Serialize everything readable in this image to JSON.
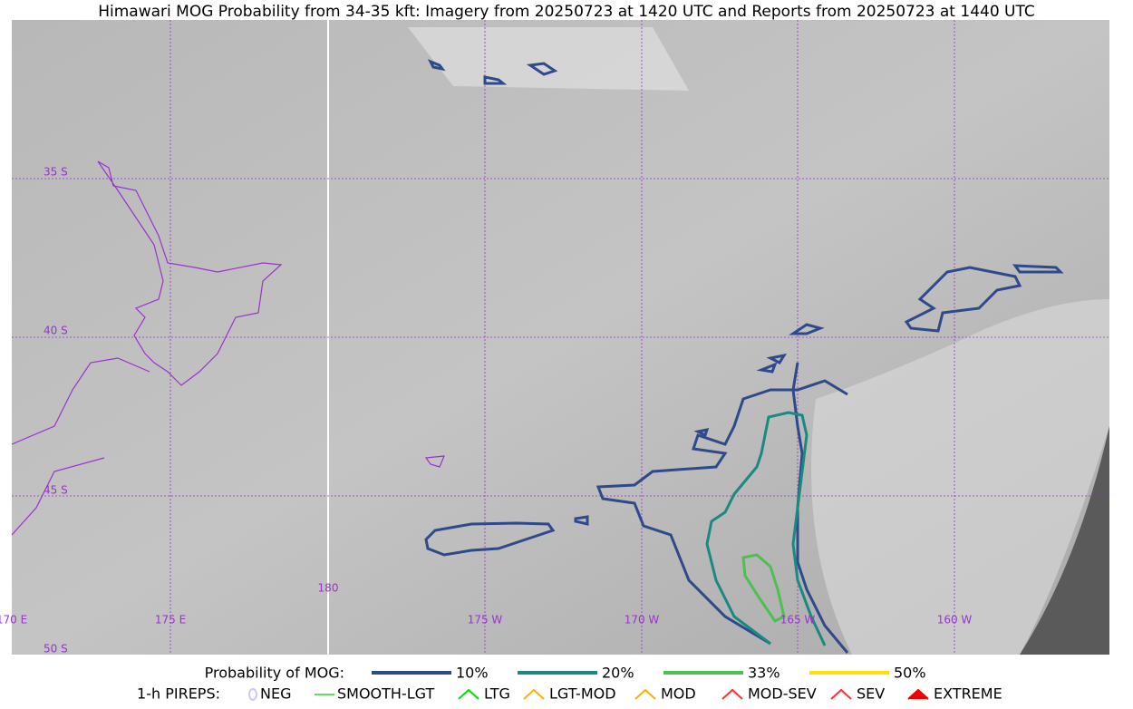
{
  "header": {
    "title": "Himawari MOG Probability from 34-35 kft: Imagery from 20250723 at 1420 UTC and Reports from 20250723 at 1440 UTC"
  },
  "map": {
    "lat_labels": [
      "35 S",
      "40 S",
      "45 S",
      "50 S"
    ],
    "lon_labels": [
      "170 E",
      "175 E",
      "180",
      "175 W",
      "170 W",
      "165 W",
      "160 W"
    ]
  },
  "legend": {
    "probability": {
      "title": "Probability of MOG:",
      "items": [
        {
          "label": "10%",
          "color": "#2e4a8a"
        },
        {
          "label": "20%",
          "color": "#1a8a80"
        },
        {
          "label": "33%",
          "color": "#4cc050"
        },
        {
          "label": "50%",
          "color": "#ffe000"
        }
      ]
    },
    "pireps": {
      "title": "1-h PIREPS:",
      "items": [
        {
          "label": "NEG",
          "color": "#c8c8ff"
        },
        {
          "label": "SMOOTH-LGT",
          "color": "#32cd32"
        },
        {
          "label": "LTG",
          "color": "#00dd00"
        },
        {
          "label": "LGT-MOD",
          "color": "#ffb000"
        },
        {
          "label": "MOD",
          "color": "#ffb000"
        },
        {
          "label": "MOD-SEV",
          "color": "#ff3030"
        },
        {
          "label": "SEV",
          "color": "#ff3030"
        },
        {
          "label": "EXTREME",
          "color": "#ee0000"
        }
      ]
    }
  }
}
